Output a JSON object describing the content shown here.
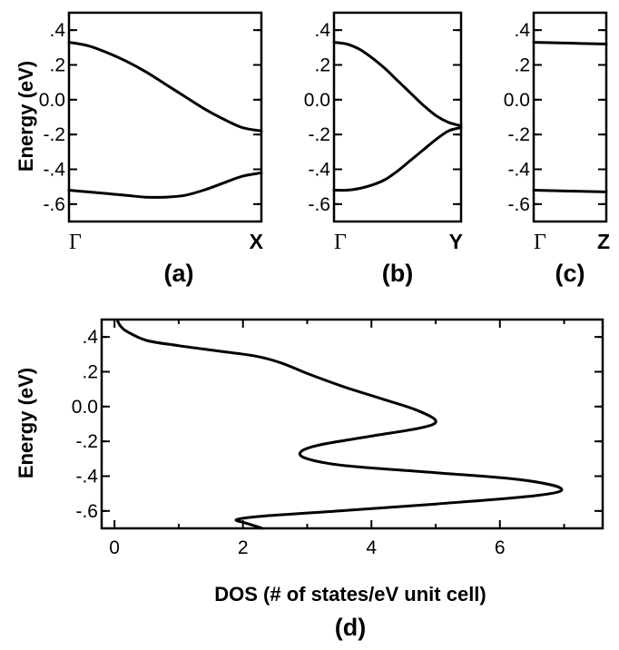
{
  "chart_data": [
    {
      "id": "a",
      "type": "line",
      "panel_label": "(a)",
      "ylabel": "Energy (eV)",
      "x_tick_labels": [
        "Γ",
        "X"
      ],
      "ylim": [
        -0.7,
        0.5
      ],
      "y_ticks": [
        0.4,
        0.2,
        0.0,
        -0.2,
        -0.4,
        -0.6
      ],
      "y_tick_labels": [
        ".4",
        ".2",
        "0.0",
        "-.2",
        "-.4",
        "-.6"
      ],
      "xlim": [
        0,
        1
      ],
      "series": [
        {
          "x": [
            0,
            0.1,
            0.2,
            0.3,
            0.4,
            0.5,
            0.6,
            0.7,
            0.8,
            0.9,
            1.0
          ],
          "y": [
            0.33,
            0.31,
            0.27,
            0.22,
            0.16,
            0.09,
            0.02,
            -0.05,
            -0.11,
            -0.16,
            -0.18
          ]
        },
        {
          "x": [
            0,
            0.1,
            0.2,
            0.3,
            0.4,
            0.5,
            0.6,
            0.7,
            0.8,
            0.9,
            1.0
          ],
          "y": [
            -0.52,
            -0.53,
            -0.54,
            -0.55,
            -0.56,
            -0.56,
            -0.55,
            -0.52,
            -0.48,
            -0.44,
            -0.42
          ]
        }
      ]
    },
    {
      "id": "b",
      "type": "line",
      "panel_label": "(b)",
      "ylabel": "",
      "x_tick_labels": [
        "Γ",
        "Y"
      ],
      "ylim": [
        -0.7,
        0.5
      ],
      "y_ticks": [
        0.4,
        0.2,
        0.0,
        -0.2,
        -0.4,
        -0.6
      ],
      "y_tick_labels": [
        ".4",
        ".2",
        "0.0",
        "-.2",
        "-.4",
        "-.6"
      ],
      "xlim": [
        0,
        1
      ],
      "series": [
        {
          "x": [
            0,
            0.1,
            0.2,
            0.3,
            0.4,
            0.5,
            0.6,
            0.7,
            0.8,
            0.9,
            1.0
          ],
          "y": [
            0.33,
            0.32,
            0.29,
            0.24,
            0.18,
            0.11,
            0.04,
            -0.03,
            -0.09,
            -0.13,
            -0.15
          ]
        },
        {
          "x": [
            0,
            0.1,
            0.2,
            0.3,
            0.4,
            0.5,
            0.6,
            0.7,
            0.8,
            0.9,
            1.0
          ],
          "y": [
            -0.52,
            -0.52,
            -0.51,
            -0.49,
            -0.46,
            -0.41,
            -0.35,
            -0.29,
            -0.23,
            -0.18,
            -0.16
          ]
        }
      ]
    },
    {
      "id": "c",
      "type": "line",
      "panel_label": "(c)",
      "ylabel": "",
      "x_tick_labels": [
        "Γ",
        "Z"
      ],
      "ylim": [
        -0.7,
        0.5
      ],
      "y_ticks": [
        0.4,
        0.2,
        0.0,
        -0.2,
        -0.4,
        -0.6
      ],
      "y_tick_labels": [
        ".4",
        ".2",
        "0.0",
        "-.2",
        "-.4",
        "-.6"
      ],
      "xlim": [
        0,
        1
      ],
      "series": [
        {
          "x": [
            0,
            1.0
          ],
          "y": [
            0.33,
            0.32
          ]
        },
        {
          "x": [
            0,
            1.0
          ],
          "y": [
            -0.52,
            -0.53
          ]
        }
      ]
    },
    {
      "id": "d",
      "type": "line",
      "panel_label": "(d)",
      "ylabel": "Energy (eV)",
      "xlabel": "DOS (# of states/eV unit cell)",
      "xlim": [
        -0.2,
        7.6
      ],
      "x_ticks": [
        0,
        2,
        4,
        6
      ],
      "x_tick_labels": [
        "0",
        "2",
        "4",
        "6"
      ],
      "ylim": [
        -0.7,
        0.5
      ],
      "y_ticks": [
        0.4,
        0.2,
        0.0,
        -0.2,
        -0.4,
        -0.6
      ],
      "y_tick_labels": [
        ".4",
        ".2",
        "0.0",
        "-.2",
        "-.4",
        "-.6"
      ],
      "series": [
        {
          "x": [
            0.05,
            0.1,
            0.2,
            0.5,
            1.0,
            1.6,
            2.2,
            2.6,
            3.0,
            3.6,
            4.2,
            4.7,
            5.0,
            4.8,
            4.0,
            3.2,
            2.9,
            3.0,
            3.6,
            5.0,
            6.3,
            6.95,
            6.6,
            5.0,
            3.5,
            2.3,
            1.9,
            2.05,
            2.3
          ],
          "y": [
            0.49,
            0.46,
            0.43,
            0.38,
            0.35,
            0.32,
            0.29,
            0.25,
            0.19,
            0.11,
            0.04,
            -0.02,
            -0.08,
            -0.12,
            -0.17,
            -0.22,
            -0.26,
            -0.3,
            -0.34,
            -0.38,
            -0.42,
            -0.47,
            -0.51,
            -0.56,
            -0.6,
            -0.63,
            -0.65,
            -0.67,
            -0.7
          ]
        }
      ]
    }
  ]
}
